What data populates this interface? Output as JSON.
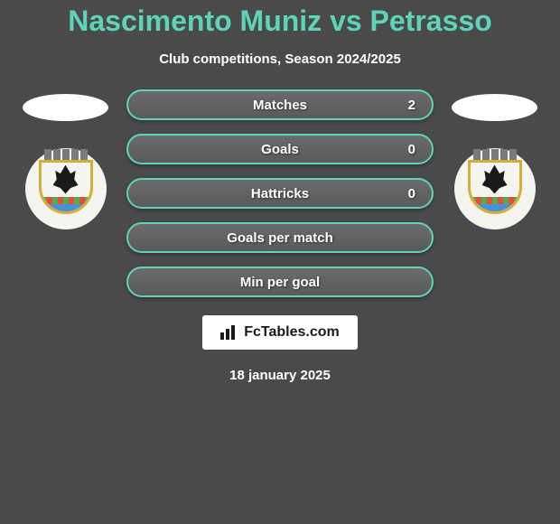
{
  "title": "Nascimento Muniz vs Petrasso",
  "subtitle": "Club competitions, Season 2024/2025",
  "colors": {
    "accent": "#5dd4b8",
    "background": "#4a4a4a",
    "text": "#ffffff",
    "bar_bg": "#5a5a5a"
  },
  "stats": [
    {
      "label": "Matches",
      "value": "2"
    },
    {
      "label": "Goals",
      "value": "0"
    },
    {
      "label": "Hattricks",
      "value": "0"
    },
    {
      "label": "Goals per match",
      "value": ""
    },
    {
      "label": "Min per goal",
      "value": ""
    }
  ],
  "footer": {
    "brand": "FcTables.com",
    "date": "18 january 2025"
  }
}
